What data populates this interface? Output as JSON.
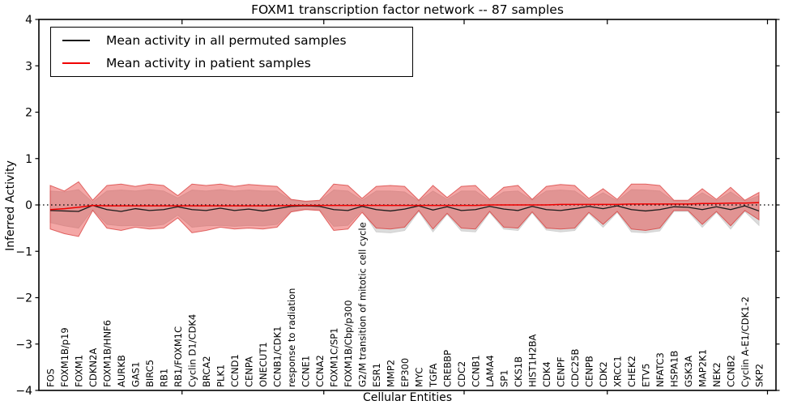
{
  "chart_data": {
    "type": "line",
    "title": "FOXM1 transcription factor network -- 87 samples",
    "xlabel": "Cellular Entities",
    "ylabel": "Inferred Activity",
    "ylim": [
      -4,
      4
    ],
    "ytick_labels": [
      "4",
      "3",
      "2",
      "1",
      "0",
      "−1",
      "−2",
      "−3",
      "−4"
    ],
    "ytick_values": [
      4,
      3,
      2,
      1,
      0,
      -1,
      -2,
      -3,
      -4
    ],
    "xtick_positions": [
      9.3,
      19.3,
      29.2,
      39.3,
      50.6
    ],
    "grid": false,
    "legend_position": "upper left",
    "categories": [
      "FOS",
      "FOXM1B/p19",
      "FOXM1",
      "CDKN2A",
      "FOXM1B/HNF6",
      "AURKB",
      "GAS1",
      "BIRC5",
      "RB1",
      "RB1/FOXM1C",
      "Cyclin D1/CDK4",
      "BRCA2",
      "PLK1",
      "CCND1",
      "CENPA",
      "ONECUT1",
      "CCNB1/CDK1",
      "response to radiation",
      "CCNE1",
      "CCNA2",
      "FOXM1C/SP1",
      "FOXM1B/Cbp/p300",
      "G2/M transition of mitotic cell cycle",
      "ESR1",
      "MMP2",
      "EP300",
      "MYC",
      "TGFA",
      "CREBBP",
      "CDC2",
      "CCNB1",
      "LAMA4",
      "SP1",
      "CKS1B",
      "HIST1H2BA",
      "CDK4",
      "CENPF",
      "CDC25B",
      "CENPB",
      "CDK2",
      "XRCC1",
      "CHEK2",
      "ETV5",
      "NFATC3",
      "HSPA1B",
      "GSK3A",
      "MAP2K1",
      "NEK2",
      "CCNB2",
      "Cyclin A-E1/CDK1-2",
      "SKP2"
    ],
    "series": [
      {
        "name": "Mean activity in all permuted samples",
        "color": "#1a1a1a",
        "values": [
          -0.12,
          -0.13,
          -0.14,
          -0.01,
          -0.1,
          -0.14,
          -0.08,
          -0.12,
          -0.1,
          -0.04,
          -0.1,
          -0.12,
          -0.07,
          -0.12,
          -0.09,
          -0.13,
          -0.08,
          -0.03,
          -0.02,
          -0.03,
          -0.1,
          -0.12,
          -0.03,
          -0.1,
          -0.13,
          -0.09,
          -0.02,
          -0.11,
          -0.04,
          -0.12,
          -0.1,
          -0.03,
          -0.09,
          -0.12,
          -0.03,
          -0.1,
          -0.12,
          -0.08,
          -0.03,
          -0.08,
          -0.02,
          -0.1,
          -0.13,
          -0.1,
          -0.04,
          -0.05,
          -0.1,
          -0.04,
          -0.1,
          -0.02,
          -0.13
        ]
      },
      {
        "name": "Mean activity in patient samples",
        "color": "#f00000",
        "values": [
          -0.1,
          -0.08,
          -0.05,
          -0.01,
          -0.02,
          -0.02,
          -0.02,
          -0.02,
          -0.02,
          -0.02,
          -0.02,
          -0.02,
          -0.02,
          -0.02,
          -0.02,
          -0.02,
          -0.02,
          -0.01,
          -0.01,
          -0.01,
          -0.01,
          -0.01,
          -0.01,
          -0.01,
          -0.01,
          -0.01,
          -0.01,
          -0.01,
          -0.01,
          -0.01,
          -0.01,
          0.0,
          0.0,
          0.0,
          0.0,
          0.0,
          0.01,
          0.01,
          0.01,
          0.01,
          0.01,
          0.02,
          0.02,
          0.02,
          0.02,
          0.02,
          0.03,
          0.03,
          0.04,
          0.04,
          0.05
        ]
      }
    ],
    "bands": [
      {
        "name": "permuted samples range",
        "fill": "#dcdcdc",
        "stroke": "#d0d0d0",
        "top": [
          0.3,
          0.28,
          0.33,
          0.06,
          0.3,
          0.32,
          0.3,
          0.33,
          0.3,
          0.15,
          0.32,
          0.3,
          0.33,
          0.3,
          0.32,
          0.3,
          0.3,
          0.1,
          0.07,
          0.08,
          0.32,
          0.3,
          0.1,
          0.3,
          0.3,
          0.28,
          0.08,
          0.3,
          0.12,
          0.3,
          0.3,
          0.09,
          0.28,
          0.3,
          0.1,
          0.3,
          0.32,
          0.3,
          0.1,
          0.26,
          0.09,
          0.33,
          0.32,
          0.3,
          0.08,
          0.08,
          0.26,
          0.09,
          0.28,
          0.08,
          0.2
        ],
        "bottom": [
          -0.38,
          -0.45,
          -0.5,
          -0.1,
          -0.42,
          -0.45,
          -0.44,
          -0.46,
          -0.42,
          -0.22,
          -0.48,
          -0.45,
          -0.44,
          -0.46,
          -0.44,
          -0.45,
          -0.42,
          -0.13,
          -0.09,
          -0.1,
          -0.46,
          -0.44,
          -0.12,
          -0.58,
          -0.6,
          -0.55,
          -0.14,
          -0.58,
          -0.2,
          -0.56,
          -0.58,
          -0.16,
          -0.52,
          -0.55,
          -0.17,
          -0.54,
          -0.58,
          -0.55,
          -0.18,
          -0.48,
          -0.16,
          -0.58,
          -0.6,
          -0.56,
          -0.14,
          -0.14,
          -0.48,
          -0.16,
          -0.52,
          -0.14,
          -0.44
        ]
      },
      {
        "name": "patient samples range",
        "fill": "rgba(230,60,58,0.45)",
        "stroke": "rgba(214,50,48,0.7)",
        "top": [
          0.42,
          0.3,
          0.5,
          0.1,
          0.42,
          0.45,
          0.4,
          0.45,
          0.42,
          0.2,
          0.45,
          0.42,
          0.45,
          0.4,
          0.44,
          0.42,
          0.4,
          0.12,
          0.08,
          0.1,
          0.45,
          0.42,
          0.14,
          0.4,
          0.42,
          0.4,
          0.1,
          0.42,
          0.16,
          0.4,
          0.42,
          0.12,
          0.38,
          0.42,
          0.12,
          0.4,
          0.44,
          0.42,
          0.14,
          0.35,
          0.12,
          0.45,
          0.45,
          0.42,
          0.1,
          0.1,
          0.35,
          0.12,
          0.38,
          0.1,
          0.27
        ],
        "bottom": [
          -0.52,
          -0.62,
          -0.68,
          -0.12,
          -0.5,
          -0.55,
          -0.48,
          -0.52,
          -0.5,
          -0.28,
          -0.6,
          -0.55,
          -0.48,
          -0.52,
          -0.5,
          -0.52,
          -0.48,
          -0.15,
          -0.1,
          -0.12,
          -0.55,
          -0.52,
          -0.16,
          -0.5,
          -0.52,
          -0.48,
          -0.12,
          -0.52,
          -0.18,
          -0.5,
          -0.52,
          -0.14,
          -0.48,
          -0.5,
          -0.15,
          -0.5,
          -0.52,
          -0.5,
          -0.16,
          -0.42,
          -0.14,
          -0.52,
          -0.55,
          -0.5,
          -0.12,
          -0.12,
          -0.42,
          -0.14,
          -0.45,
          -0.12,
          -0.32
        ]
      }
    ],
    "zero_line": {
      "value": 0,
      "style": "dotted",
      "color": "#000000"
    },
    "frame_color": "#000000"
  }
}
